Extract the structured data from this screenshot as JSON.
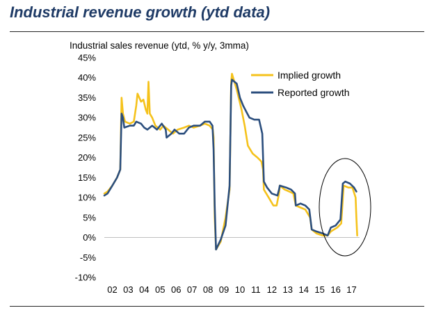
{
  "header": {
    "title": "Industrial revenue growth (ytd data)"
  },
  "chart_data": {
    "type": "line",
    "title": "",
    "ylabel": "Industrial sales revenue (ytd, % y/y, 3mma)",
    "xlabel": "",
    "ylim": [
      -10,
      45
    ],
    "y_ticks": [
      -10,
      -5,
      0,
      5,
      10,
      15,
      20,
      25,
      30,
      35,
      40,
      45
    ],
    "y_tick_labels": [
      "-10%",
      "-5%",
      "0%",
      "5%",
      "10%",
      "15%",
      "20%",
      "25%",
      "30%",
      "35%",
      "40%",
      "45%"
    ],
    "x_range": [
      2002,
      2018
    ],
    "x_tick_labels": [
      "02",
      "03",
      "04",
      "05",
      "06",
      "07",
      "08",
      "09",
      "10",
      "11",
      "12",
      "13",
      "14",
      "15",
      "16",
      "17"
    ],
    "legend_position": "top-right",
    "annotation": "ellipse highlighting 2016-2017",
    "series": [
      {
        "name": "Implied growth",
        "color": "#f5c21b",
        "points": [
          [
            2002.0,
            11
          ],
          [
            2002.2,
            11.5
          ],
          [
            2002.5,
            13
          ],
          [
            2002.8,
            15
          ],
          [
            2003.0,
            17
          ],
          [
            2003.08,
            35
          ],
          [
            2003.17,
            31
          ],
          [
            2003.3,
            29
          ],
          [
            2003.6,
            28.5
          ],
          [
            2003.85,
            29
          ],
          [
            2004.0,
            33
          ],
          [
            2004.08,
            36
          ],
          [
            2004.3,
            34
          ],
          [
            2004.45,
            34.5
          ],
          [
            2004.6,
            32
          ],
          [
            2004.7,
            31
          ],
          [
            2004.77,
            39
          ],
          [
            2004.85,
            31
          ],
          [
            2005.0,
            30
          ],
          [
            2005.2,
            28
          ],
          [
            2005.5,
            27
          ],
          [
            2005.7,
            28
          ],
          [
            2006.0,
            27
          ],
          [
            2006.3,
            26
          ],
          [
            2006.6,
            27
          ],
          [
            2007.0,
            27.5
          ],
          [
            2007.3,
            28
          ],
          [
            2007.6,
            27.5
          ],
          [
            2008.0,
            28
          ],
          [
            2008.3,
            28.5
          ],
          [
            2008.6,
            28
          ],
          [
            2008.8,
            27
          ],
          [
            2008.85,
            25
          ],
          [
            2008.92,
            5
          ],
          [
            2009.0,
            -3
          ],
          [
            2009.3,
            -1
          ],
          [
            2009.6,
            5
          ],
          [
            2009.85,
            12
          ],
          [
            2009.95,
            39
          ],
          [
            2010.0,
            41
          ],
          [
            2010.3,
            37
          ],
          [
            2010.6,
            32
          ],
          [
            2010.8,
            28
          ],
          [
            2011.0,
            23
          ],
          [
            2011.3,
            21
          ],
          [
            2011.6,
            20
          ],
          [
            2011.85,
            19
          ],
          [
            2011.95,
            17
          ],
          [
            2012.0,
            12
          ],
          [
            2012.3,
            10
          ],
          [
            2012.6,
            8
          ],
          [
            2012.8,
            8
          ],
          [
            2012.95,
            11
          ],
          [
            2013.0,
            13
          ],
          [
            2013.3,
            12
          ],
          [
            2013.6,
            11.5
          ],
          [
            2013.85,
            11
          ],
          [
            2014.0,
            8
          ],
          [
            2014.3,
            7.5
          ],
          [
            2014.6,
            7
          ],
          [
            2014.9,
            5
          ],
          [
            2015.0,
            2
          ],
          [
            2015.3,
            1
          ],
          [
            2015.7,
            0.5
          ],
          [
            2016.0,
            0.5
          ],
          [
            2016.2,
            1.5
          ],
          [
            2016.6,
            2.5
          ],
          [
            2016.85,
            3.5
          ],
          [
            2017.0,
            13
          ],
          [
            2017.3,
            12.5
          ],
          [
            2017.55,
            12.5
          ],
          [
            2017.75,
            10
          ],
          [
            2017.8,
            5
          ],
          [
            2017.85,
            0.5
          ]
        ]
      },
      {
        "name": "Reported growth",
        "color": "#2b4e7d",
        "points": [
          [
            2002.0,
            10.5
          ],
          [
            2002.2,
            11
          ],
          [
            2002.5,
            13
          ],
          [
            2002.8,
            15
          ],
          [
            2003.0,
            17
          ],
          [
            2003.08,
            31
          ],
          [
            2003.17,
            30
          ],
          [
            2003.25,
            27.5
          ],
          [
            2003.6,
            28
          ],
          [
            2003.85,
            28
          ],
          [
            2004.0,
            29
          ],
          [
            2004.3,
            28.5
          ],
          [
            2004.5,
            27.5
          ],
          [
            2004.7,
            27
          ],
          [
            2005.0,
            28
          ],
          [
            2005.3,
            27
          ],
          [
            2005.6,
            28.5
          ],
          [
            2005.85,
            27
          ],
          [
            2005.9,
            25
          ],
          [
            2006.2,
            26
          ],
          [
            2006.4,
            27
          ],
          [
            2006.7,
            26
          ],
          [
            2007.0,
            26
          ],
          [
            2007.3,
            27.5
          ],
          [
            2007.6,
            28
          ],
          [
            2008.0,
            28
          ],
          [
            2008.3,
            29
          ],
          [
            2008.6,
            29
          ],
          [
            2008.78,
            28
          ],
          [
            2008.85,
            22
          ],
          [
            2008.92,
            8
          ],
          [
            2009.0,
            -3
          ],
          [
            2009.3,
            -0.5
          ],
          [
            2009.6,
            3
          ],
          [
            2009.85,
            13
          ],
          [
            2009.95,
            38
          ],
          [
            2010.0,
            39.5
          ],
          [
            2010.3,
            38.5
          ],
          [
            2010.5,
            35
          ],
          [
            2010.7,
            33
          ],
          [
            2010.9,
            31.5
          ],
          [
            2011.1,
            30
          ],
          [
            2011.4,
            29.5
          ],
          [
            2011.7,
            29.5
          ],
          [
            2011.9,
            26
          ],
          [
            2012.0,
            14
          ],
          [
            2012.2,
            12.5
          ],
          [
            2012.5,
            11
          ],
          [
            2012.85,
            10.5
          ],
          [
            2012.95,
            12
          ],
          [
            2013.0,
            13
          ],
          [
            2013.4,
            12.5
          ],
          [
            2013.7,
            12
          ],
          [
            2013.95,
            11
          ],
          [
            2014.0,
            8
          ],
          [
            2014.3,
            8.5
          ],
          [
            2014.6,
            8
          ],
          [
            2014.85,
            7
          ],
          [
            2015.0,
            2
          ],
          [
            2015.3,
            1.5
          ],
          [
            2015.7,
            1
          ],
          [
            2016.0,
            0.5
          ],
          [
            2016.2,
            2.5
          ],
          [
            2016.5,
            3
          ],
          [
            2016.8,
            4.5
          ],
          [
            2016.95,
            13.5
          ],
          [
            2017.1,
            14
          ],
          [
            2017.4,
            13.5
          ],
          [
            2017.65,
            12.5
          ],
          [
            2017.8,
            11.5
          ]
        ]
      }
    ]
  }
}
